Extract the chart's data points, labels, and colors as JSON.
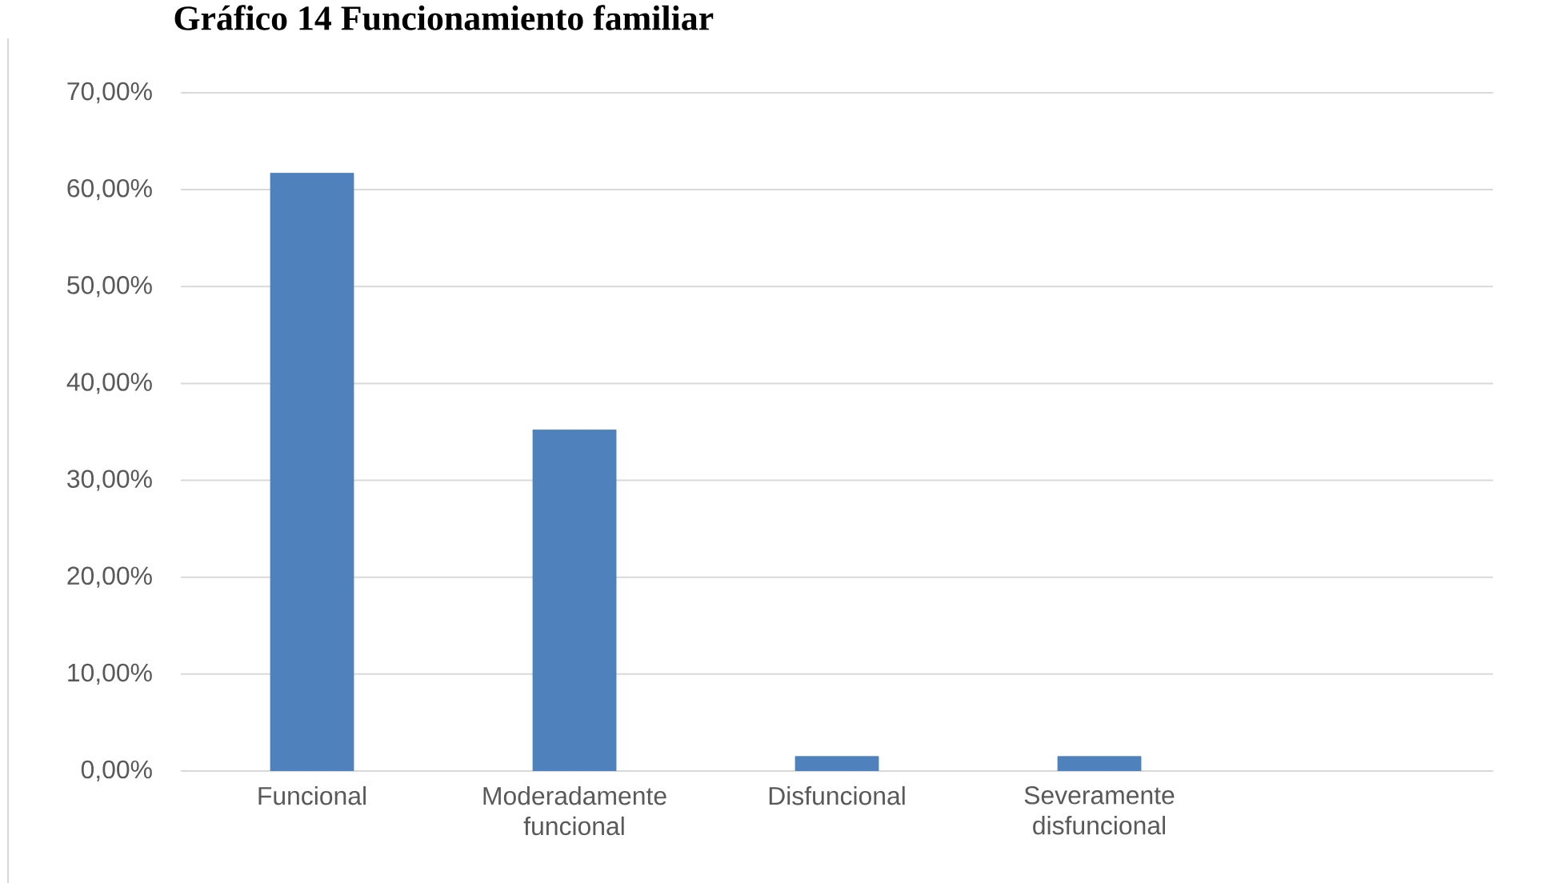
{
  "chart_data": {
    "type": "bar",
    "title": "Gráfico  14 Funcionamiento familiar",
    "categories": [
      "Funcional",
      "Moderadamente funcional",
      "Disfuncional",
      "Severamente disfuncional",
      null
    ],
    "values": [
      61.7,
      35.2,
      1.5,
      1.5,
      null
    ],
    "color": "#4f81bd",
    "ylim": [
      0,
      70
    ],
    "yticks": [
      {
        "value": 0,
        "label": "0,00%"
      },
      {
        "value": 10,
        "label": "10,00%"
      },
      {
        "value": 20,
        "label": "20,00%"
      },
      {
        "value": 30,
        "label": "30,00%"
      },
      {
        "value": 40,
        "label": "40,00%"
      },
      {
        "value": 50,
        "label": "50,00%"
      },
      {
        "value": 60,
        "label": "60,00%"
      },
      {
        "value": 70,
        "label": "70,00%"
      }
    ],
    "grid": "y"
  }
}
